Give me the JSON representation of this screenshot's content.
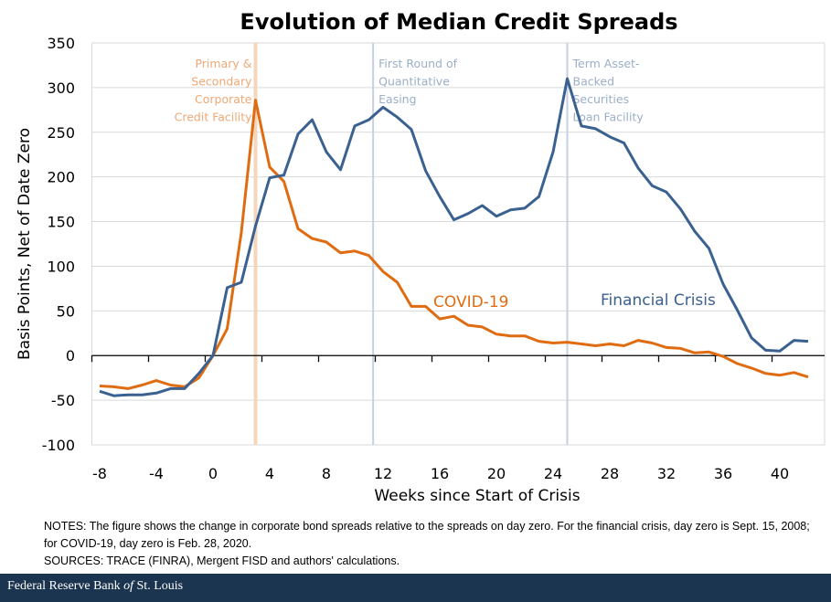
{
  "chart_data": {
    "type": "line",
    "title": "Evolution of Median Credit Spreads",
    "xlabel": "Weeks since Start of Crisis",
    "ylabel": "Basis Points, Net of Date Zero",
    "ylim": [
      -100,
      350
    ],
    "yticks": [
      -100,
      -50,
      0,
      50,
      100,
      150,
      200,
      250,
      300,
      350
    ],
    "xlim": [
      -8,
      42
    ],
    "xticks": [
      -8,
      -4,
      0,
      4,
      8,
      12,
      16,
      20,
      24,
      28,
      32,
      36,
      40
    ],
    "grid": "horizontal",
    "x": [
      -8,
      -7,
      -6,
      -5,
      -4,
      -3,
      -2,
      -1,
      0,
      1,
      2,
      3,
      4,
      5,
      6,
      7,
      8,
      9,
      10,
      11,
      12,
      13,
      14,
      15,
      16,
      17,
      18,
      19,
      20,
      21,
      22,
      23,
      24,
      25,
      26,
      27,
      28,
      29,
      30,
      31,
      32,
      33,
      34,
      35,
      36,
      37,
      38,
      39,
      40,
      41,
      42
    ],
    "series": [
      {
        "name": "Financial Crisis",
        "color": "#3a6190",
        "values": [
          -40,
          -45,
          -44,
          -44,
          -42,
          -37,
          -37,
          -20,
          0,
          76,
          82,
          145,
          199,
          202,
          248,
          264,
          228,
          208,
          257,
          264,
          278,
          267,
          253,
          207,
          178,
          152,
          159,
          168,
          156,
          163,
          165,
          178,
          228,
          310,
          257,
          254,
          245,
          238,
          210,
          190,
          183,
          164,
          139,
          120,
          80,
          51,
          20,
          6,
          5,
          17,
          16
        ]
      },
      {
        "name": "COVID-19",
        "color": "#e06c12",
        "values": [
          -34,
          -35,
          -37,
          -33,
          -28,
          -33,
          -35,
          -25,
          0,
          30,
          138,
          286,
          211,
          195,
          142,
          131,
          127,
          115,
          117,
          112,
          94,
          82,
          55,
          55,
          41,
          44,
          34,
          32,
          24,
          22,
          22,
          16,
          14,
          15,
          13,
          11,
          13,
          11,
          17,
          14,
          9,
          8,
          3,
          4,
          -1,
          -9,
          -14,
          -20,
          -22,
          -19,
          -24
        ]
      }
    ],
    "annotations": [
      {
        "week": 3,
        "lines": [
          "Primary &",
          "Secondary",
          "Corporate",
          "Credit Facility"
        ],
        "color": "#f0a875",
        "line_color": "#f6d5bd"
      },
      {
        "week": 11.3,
        "lines": [
          "First Round of",
          "Quantitative",
          "Easing"
        ],
        "color": "#9bafc8",
        "line_color": "#c5d1e0"
      },
      {
        "week": 25,
        "lines": [
          "Term Asset-",
          "Backed",
          "Securities",
          "Loan Facility"
        ],
        "color": "#9bafc8",
        "line_color": "#c5d1e0"
      }
    ],
    "series_labels": [
      {
        "text": "COVID-19",
        "color": "#e06c12",
        "near_week": 15,
        "near_value": 60
      },
      {
        "text": "Financial Crisis",
        "color": "#3a6190",
        "near_week": 27,
        "near_value": 60
      }
    ]
  },
  "notes": {
    "line1": "NOTES: The figure shows the change in corporate bond spreads relative to the spreads on day zero. For the financial crisis, day zero is Sept. 15, 2008; for COVID-19, day zero is Feb. 28, 2020.",
    "line2": "SOURCES: TRACE (FINRA), Mergent FISD and authors' calculations."
  },
  "footer": {
    "text_before": "Federal Reserve Bank ",
    "text_italic": "of",
    "text_after": " St. Louis"
  }
}
